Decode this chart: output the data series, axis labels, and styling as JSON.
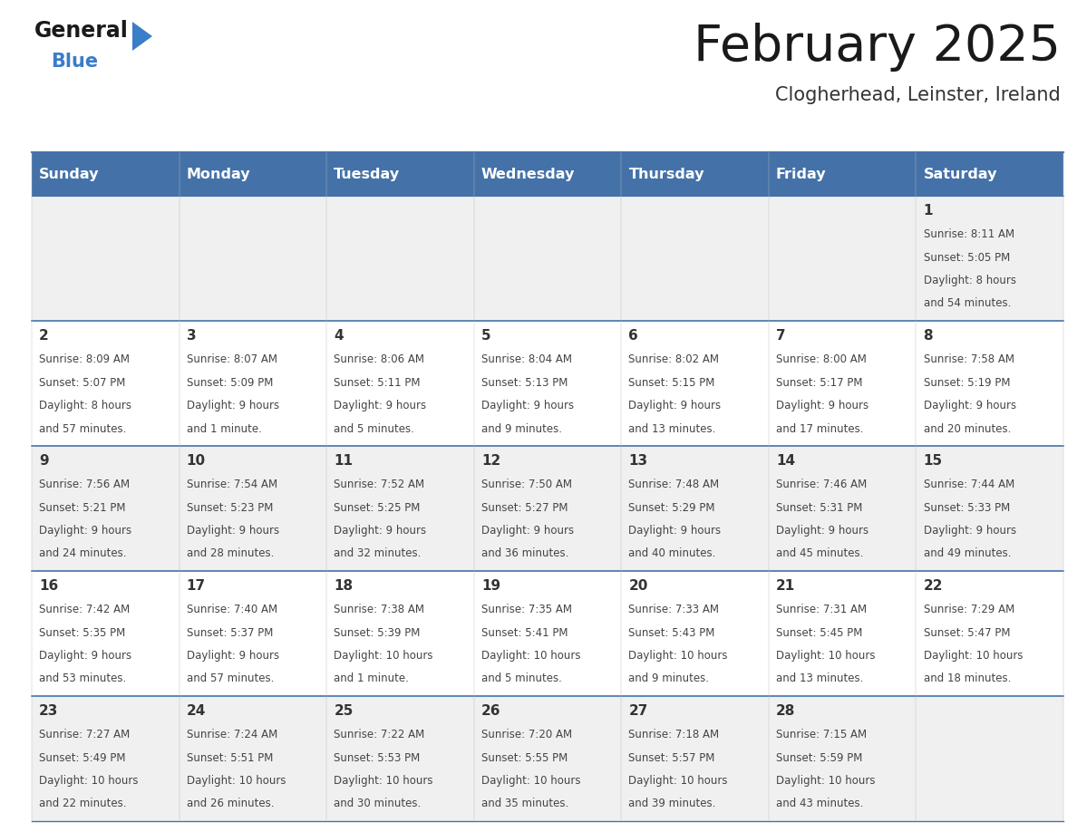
{
  "title": "February 2025",
  "subtitle": "Clogherhead, Leinster, Ireland",
  "days_of_week": [
    "Sunday",
    "Monday",
    "Tuesday",
    "Wednesday",
    "Thursday",
    "Friday",
    "Saturday"
  ],
  "header_bg": "#4472A8",
  "header_text": "#FFFFFF",
  "row_bg_odd": "#F0F0F0",
  "row_bg_even": "#FFFFFF",
  "cell_text_color": "#444444",
  "day_number_color": "#333333",
  "grid_line_color": "#4472A8",
  "title_color": "#1a1a1a",
  "subtitle_color": "#333333",
  "logo_general_color": "#1a1a1a",
  "logo_blue_color": "#3A7DC9",
  "calendar_data": [
    [
      {
        "day": null,
        "sunrise": null,
        "sunset": null,
        "daylight": null
      },
      {
        "day": null,
        "sunrise": null,
        "sunset": null,
        "daylight": null
      },
      {
        "day": null,
        "sunrise": null,
        "sunset": null,
        "daylight": null
      },
      {
        "day": null,
        "sunrise": null,
        "sunset": null,
        "daylight": null
      },
      {
        "day": null,
        "sunrise": null,
        "sunset": null,
        "daylight": null
      },
      {
        "day": null,
        "sunrise": null,
        "sunset": null,
        "daylight": null
      },
      {
        "day": 1,
        "sunrise": "8:11 AM",
        "sunset": "5:05 PM",
        "daylight": "8 hours and 54 minutes."
      }
    ],
    [
      {
        "day": 2,
        "sunrise": "8:09 AM",
        "sunset": "5:07 PM",
        "daylight": "8 hours and 57 minutes."
      },
      {
        "day": 3,
        "sunrise": "8:07 AM",
        "sunset": "5:09 PM",
        "daylight": "9 hours and 1 minute."
      },
      {
        "day": 4,
        "sunrise": "8:06 AM",
        "sunset": "5:11 PM",
        "daylight": "9 hours and 5 minutes."
      },
      {
        "day": 5,
        "sunrise": "8:04 AM",
        "sunset": "5:13 PM",
        "daylight": "9 hours and 9 minutes."
      },
      {
        "day": 6,
        "sunrise": "8:02 AM",
        "sunset": "5:15 PM",
        "daylight": "9 hours and 13 minutes."
      },
      {
        "day": 7,
        "sunrise": "8:00 AM",
        "sunset": "5:17 PM",
        "daylight": "9 hours and 17 minutes."
      },
      {
        "day": 8,
        "sunrise": "7:58 AM",
        "sunset": "5:19 PM",
        "daylight": "9 hours and 20 minutes."
      }
    ],
    [
      {
        "day": 9,
        "sunrise": "7:56 AM",
        "sunset": "5:21 PM",
        "daylight": "9 hours and 24 minutes."
      },
      {
        "day": 10,
        "sunrise": "7:54 AM",
        "sunset": "5:23 PM",
        "daylight": "9 hours and 28 minutes."
      },
      {
        "day": 11,
        "sunrise": "7:52 AM",
        "sunset": "5:25 PM",
        "daylight": "9 hours and 32 minutes."
      },
      {
        "day": 12,
        "sunrise": "7:50 AM",
        "sunset": "5:27 PM",
        "daylight": "9 hours and 36 minutes."
      },
      {
        "day": 13,
        "sunrise": "7:48 AM",
        "sunset": "5:29 PM",
        "daylight": "9 hours and 40 minutes."
      },
      {
        "day": 14,
        "sunrise": "7:46 AM",
        "sunset": "5:31 PM",
        "daylight": "9 hours and 45 minutes."
      },
      {
        "day": 15,
        "sunrise": "7:44 AM",
        "sunset": "5:33 PM",
        "daylight": "9 hours and 49 minutes."
      }
    ],
    [
      {
        "day": 16,
        "sunrise": "7:42 AM",
        "sunset": "5:35 PM",
        "daylight": "9 hours and 53 minutes."
      },
      {
        "day": 17,
        "sunrise": "7:40 AM",
        "sunset": "5:37 PM",
        "daylight": "9 hours and 57 minutes."
      },
      {
        "day": 18,
        "sunrise": "7:38 AM",
        "sunset": "5:39 PM",
        "daylight": "10 hours and 1 minute."
      },
      {
        "day": 19,
        "sunrise": "7:35 AM",
        "sunset": "5:41 PM",
        "daylight": "10 hours and 5 minutes."
      },
      {
        "day": 20,
        "sunrise": "7:33 AM",
        "sunset": "5:43 PM",
        "daylight": "10 hours and 9 minutes."
      },
      {
        "day": 21,
        "sunrise": "7:31 AM",
        "sunset": "5:45 PM",
        "daylight": "10 hours and 13 minutes."
      },
      {
        "day": 22,
        "sunrise": "7:29 AM",
        "sunset": "5:47 PM",
        "daylight": "10 hours and 18 minutes."
      }
    ],
    [
      {
        "day": 23,
        "sunrise": "7:27 AM",
        "sunset": "5:49 PM",
        "daylight": "10 hours and 22 minutes."
      },
      {
        "day": 24,
        "sunrise": "7:24 AM",
        "sunset": "5:51 PM",
        "daylight": "10 hours and 26 minutes."
      },
      {
        "day": 25,
        "sunrise": "7:22 AM",
        "sunset": "5:53 PM",
        "daylight": "10 hours and 30 minutes."
      },
      {
        "day": 26,
        "sunrise": "7:20 AM",
        "sunset": "5:55 PM",
        "daylight": "10 hours and 35 minutes."
      },
      {
        "day": 27,
        "sunrise": "7:18 AM",
        "sunset": "5:57 PM",
        "daylight": "10 hours and 39 minutes."
      },
      {
        "day": 28,
        "sunrise": "7:15 AM",
        "sunset": "5:59 PM",
        "daylight": "10 hours and 43 minutes."
      },
      {
        "day": null,
        "sunrise": null,
        "sunset": null,
        "daylight": null
      }
    ]
  ]
}
